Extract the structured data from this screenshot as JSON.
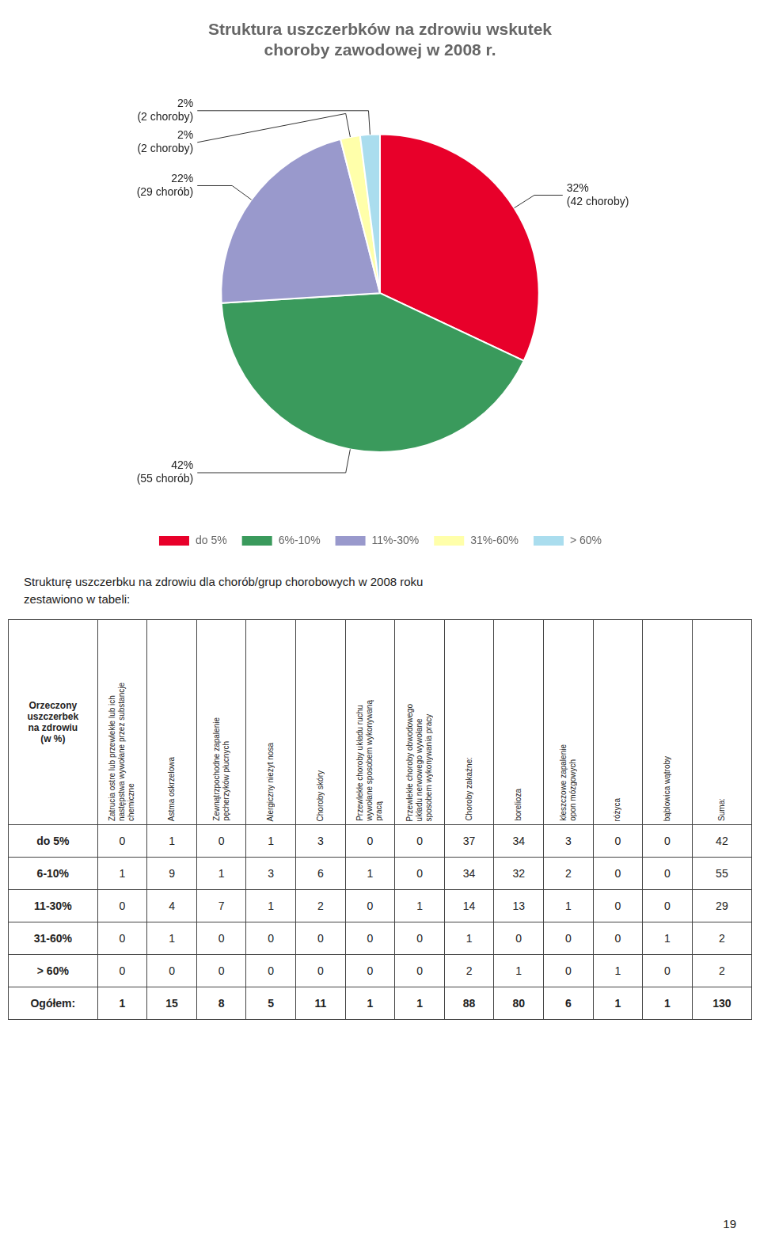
{
  "chart_data": [
    {
      "type": "pie",
      "title": "Struktura uszczerbków na zdrowiu wskutek\nchoroby zawodowej w 2008 r.",
      "categories": [
        "do 5%",
        "6%-10%",
        "11%-30%",
        "31%-60%",
        "> 60%"
      ],
      "values": [
        32,
        42,
        22,
        2,
        2
      ],
      "colors": [
        "#e8002a",
        "#3a9a5c",
        "#9999cc",
        "#ffffaa",
        "#aaddee"
      ],
      "legend": "bottom",
      "annotations": [
        "32%\n(42 choroby)",
        "42%\n(55 chorób)",
        "22%\n(29 chorób)",
        "2%\n(2 choroby)",
        "2%\n(2 choroby)"
      ]
    },
    {
      "type": "table",
      "subtitle": "Strukturę uszczerbku na zdrowiu dla chorób/grup chorobowych w 2008 roku\nzestawiono w tabeli:",
      "title": "Orzeczony\nuszczerbek\nna zdrowiu\n(w %)",
      "categories": [
        "do 5%",
        "6-10%",
        "11-30%",
        "31-60%",
        "> 60%",
        "Ogółem:"
      ],
      "series": [
        {
          "name": "Zatrucia ostre lub przewlekłe lub ich\nnastępstwa wywołane przez substancje\nchemiczne",
          "values": [
            0,
            1,
            0,
            0,
            0,
            1
          ]
        },
        {
          "name": "Astma oskrzelowa",
          "values": [
            1,
            9,
            4,
            1,
            0,
            15
          ]
        },
        {
          "name": "Zewnątrzpochodne zapalenie\npęcherzyków płucnych",
          "values": [
            0,
            1,
            7,
            0,
            0,
            8
          ]
        },
        {
          "name": "Alergiczny nieżyt nosa",
          "values": [
            1,
            3,
            1,
            0,
            0,
            5
          ]
        },
        {
          "name": "Choroby skóry",
          "values": [
            3,
            6,
            2,
            0,
            0,
            11
          ]
        },
        {
          "name": "Przewlekłe choroby układu ruchu\nwywołane sposobem wykonywaną\npracą",
          "values": [
            0,
            1,
            0,
            0,
            0,
            1
          ]
        },
        {
          "name": "Przewlekłe choroby obwodowego\nukładu nerwowego wywołane\nsposobem wykonywania pracy",
          "values": [
            0,
            0,
            1,
            0,
            0,
            1
          ]
        },
        {
          "name": "Choroby zakaźne:",
          "values": [
            37,
            34,
            14,
            1,
            2,
            88
          ]
        },
        {
          "name": "borelioza",
          "values": [
            34,
            32,
            13,
            0,
            1,
            80
          ]
        },
        {
          "name": "kleszczowe zapalenie\nopon mózgowych",
          "values": [
            3,
            2,
            1,
            0,
            0,
            6
          ]
        },
        {
          "name": "różyca",
          "values": [
            0,
            0,
            0,
            0,
            1,
            1
          ]
        },
        {
          "name": "bąblowica wątroby",
          "values": [
            0,
            0,
            0,
            1,
            0,
            1
          ]
        },
        {
          "name": "Suma:",
          "values": [
            42,
            55,
            29,
            2,
            2,
            130
          ]
        }
      ],
      "annotations": [
        "19"
      ]
    }
  ]
}
